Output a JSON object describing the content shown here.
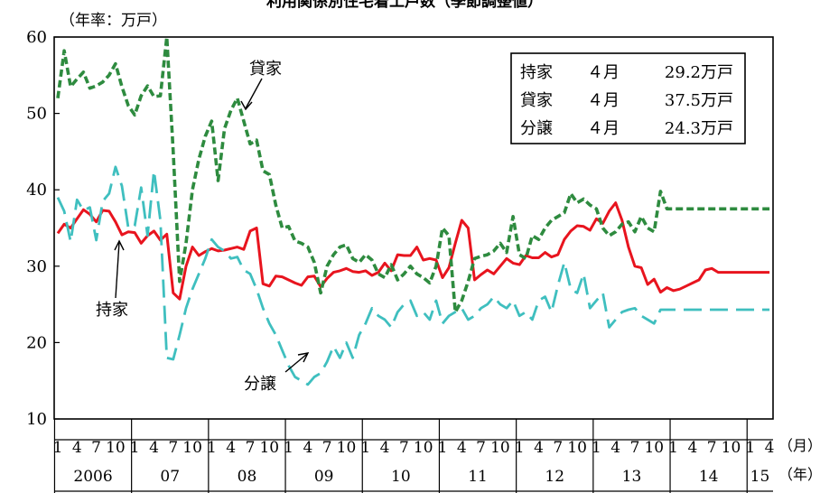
{
  "chart_data": {
    "type": "line",
    "title": "利用関係別住宅着工戸数（季節調整値）",
    "ylabel": "（年率：万戸）",
    "xlabel_month_unit": "（月）",
    "xlabel_year_unit": "（年）",
    "ylim": [
      10,
      60
    ],
    "yticks": [
      10,
      20,
      30,
      40,
      50,
      60
    ],
    "month_tick_labels": [
      "1",
      "4",
      "7",
      "10"
    ],
    "years": [
      "2006",
      "07",
      "08",
      "09",
      "10",
      "11",
      "12",
      "13",
      "14",
      "15"
    ],
    "x_start": "2006-01",
    "x_end": "2015-04",
    "legend": {
      "placement": "top-right",
      "rows": [
        {
          "name": "持家",
          "month": "４月",
          "value": "29.2万戸"
        },
        {
          "name": "貸家",
          "month": "４月",
          "value": "37.5万戸"
        },
        {
          "name": "分譲",
          "month": "４月",
          "value": "24.3万戸"
        }
      ]
    },
    "annotations": [
      {
        "text": "貸家",
        "series": "貸家"
      },
      {
        "text": "持家",
        "series": "持家"
      },
      {
        "text": "分譲",
        "series": "分譲"
      }
    ],
    "series": [
      {
        "name": "持家",
        "color": "#e8141e",
        "style": "solid",
        "values": [
          34.3,
          35.5,
          35.0,
          36.2,
          37.4,
          36.8,
          35.8,
          37.3,
          37.2,
          35.8,
          34.1,
          34.5,
          34.4,
          33.0,
          34.0,
          34.6,
          33.4,
          34.2,
          26.5,
          25.7,
          30.0,
          32.5,
          31.4,
          31.9,
          32.3,
          32.0,
          32.1,
          32.3,
          32.5,
          32.2,
          34.6,
          35.0,
          27.7,
          27.4,
          28.7,
          28.6,
          28.2,
          27.8,
          27.5,
          28.6,
          28.7,
          27.3,
          28.4,
          29.2,
          29.4,
          29.7,
          29.3,
          29.2,
          29.4,
          28.8,
          29.2,
          30.4,
          29.4,
          31.5,
          31.4,
          31.4,
          32.5,
          30.8,
          31.0,
          30.8,
          28.5,
          29.8,
          33.0,
          36.0,
          35.0,
          28.2,
          28.9,
          29.5,
          29.0,
          30.0,
          31.0,
          30.4,
          30.2,
          31.4,
          31.1,
          31.1,
          31.8,
          31.2,
          31.5,
          33.5,
          34.6,
          35.3,
          35.2,
          34.7,
          36.2,
          35.6,
          37.2,
          38.3,
          36.0,
          32.5,
          30.0,
          29.8,
          27.6,
          28.3,
          26.6,
          27.2,
          26.8,
          27.0,
          27.4,
          27.8,
          28.2,
          29.5,
          29.7,
          29.2,
          29.2,
          29.2,
          29.2,
          29.2,
          29.2,
          29.2,
          29.2,
          29.2
        ]
      },
      {
        "name": "貸家",
        "color": "#2e8b3f",
        "style": "dashed",
        "values": [
          52.0,
          58.2,
          53.5,
          54.5,
          55.4,
          53.3,
          53.6,
          54.1,
          55.0,
          56.5,
          53.5,
          51.0,
          49.8,
          52.3,
          53.6,
          52.2,
          52.3,
          60.0,
          45.0,
          28.0,
          33.0,
          40.0,
          44.0,
          47.0,
          49.0,
          41.2,
          48.0,
          50.4,
          52.0,
          49.0,
          46.0,
          46.5,
          42.5,
          42.0,
          38.0,
          35.0,
          35.2,
          33.3,
          33.0,
          32.5,
          30.5,
          26.5,
          30.0,
          31.5,
          32.5,
          32.8,
          31.0,
          30.5,
          31.5,
          30.8,
          29.0,
          28.5,
          30.2,
          28.2,
          29.0,
          30.0,
          29.0,
          28.5,
          27.8,
          30.0,
          35.0,
          34.0,
          24.0,
          25.5,
          28.0,
          31.0,
          31.3,
          31.5,
          32.0,
          33.0,
          31.8,
          36.5,
          31.5,
          31.0,
          34.0,
          33.5,
          35.0,
          36.0,
          36.5,
          37.0,
          39.5,
          38.3,
          38.8,
          38.0,
          37.5,
          35.0,
          34.0,
          34.5,
          35.5,
          35.8,
          34.5,
          36.5,
          35.0,
          34.5,
          39.8,
          37.5,
          37.5,
          37.5,
          37.5,
          37.5,
          37.5,
          37.5,
          37.5,
          37.5,
          37.5,
          37.5,
          37.5,
          37.5,
          37.5,
          37.5,
          37.5,
          37.5
        ]
      },
      {
        "name": "分譲",
        "color": "#3fbfbf",
        "style": "dashed",
        "values": [
          39.0,
          37.2,
          33.2,
          38.7,
          37.3,
          37.7,
          33.4,
          38.5,
          39.5,
          43.0,
          40.5,
          35.0,
          35.3,
          40.3,
          34.0,
          42.5,
          36.0,
          18.0,
          17.8,
          21.0,
          24.5,
          27.0,
          29.0,
          31.0,
          33.5,
          32.5,
          32.0,
          31.0,
          31.2,
          29.5,
          29.0,
          27.0,
          24.5,
          22.5,
          21.0,
          19.0,
          17.0,
          15.5,
          15.0,
          14.5,
          15.5,
          16.0,
          17.5,
          19.5,
          18.0,
          20.0,
          18.0,
          21.0,
          22.5,
          24.5,
          23.5,
          23.0,
          22.0,
          24.0,
          25.0,
          25.5,
          23.5,
          24.0,
          23.0,
          25.5,
          22.5,
          23.5,
          24.0,
          24.5,
          23.0,
          23.5,
          24.5,
          25.0,
          26.0,
          25.0,
          24.5,
          25.5,
          23.5,
          24.0,
          23.0,
          25.5,
          26.0,
          24.0,
          27.5,
          30.5,
          27.0,
          26.5,
          29.0,
          24.5,
          25.5,
          26.5,
          22.0,
          23.0,
          24.0,
          24.3,
          24.5,
          23.5,
          23.0,
          22.5,
          24.3,
          24.3,
          24.3,
          24.3,
          24.3,
          24.3,
          24.3,
          24.3,
          24.3,
          24.3,
          24.3,
          24.3,
          24.3,
          24.3,
          24.3,
          24.3,
          24.3,
          24.3
        ]
      }
    ]
  }
}
